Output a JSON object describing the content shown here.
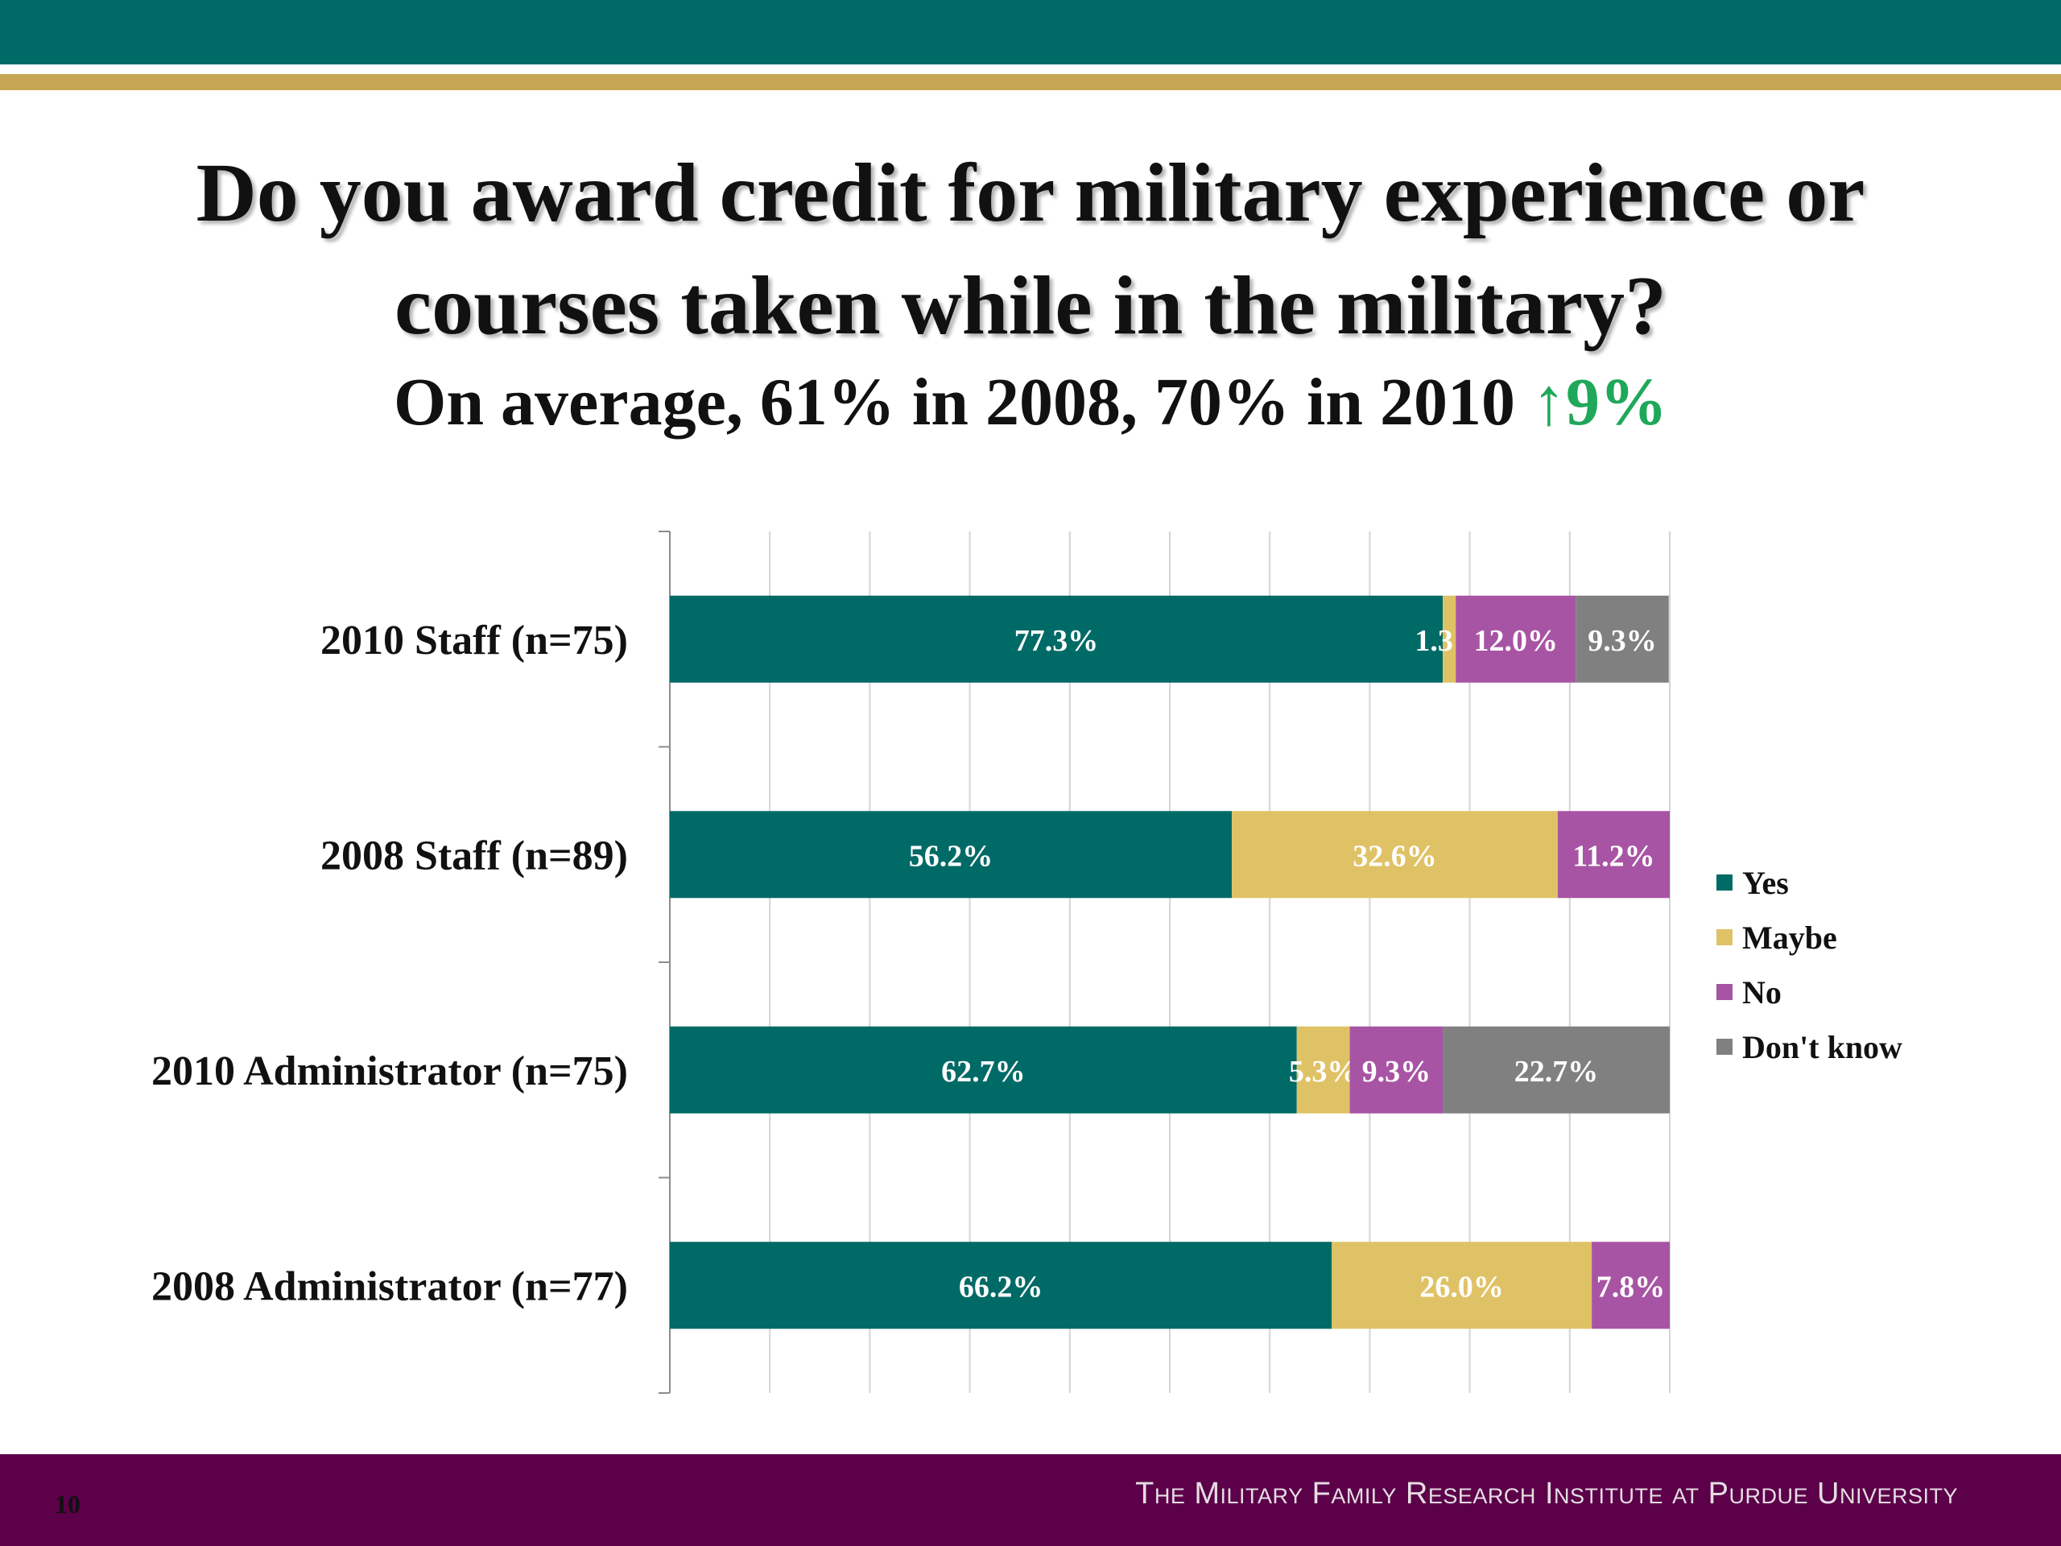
{
  "header": {
    "title_line1": "Do you award credit for military experience or",
    "title_line2": "courses taken while in the military?",
    "subtitle_text": "On average, 61% in 2008, 70% in 2010 ",
    "subtitle_up": "↑9%"
  },
  "footer": {
    "page_number": "10",
    "institute": "The Military Family Research Institute at Purdue University"
  },
  "colors": {
    "teal": "#006a66",
    "gold": "#e0c266",
    "purple": "#a854a4",
    "gray": "#808080",
    "top_band": "#006a66",
    "top_gold": "#c8a754",
    "bottom_band": "#5b0049",
    "up_green": "#1fa85a"
  },
  "chart_data": {
    "type": "bar",
    "orientation": "horizontal",
    "stacked": "100%",
    "categories": [
      "2010 Staff (n=75)",
      "2008 Staff (n=89)",
      "2010 Administrator (n=75)",
      "2008 Administrator (n=77)"
    ],
    "series": [
      {
        "name": "Yes",
        "color": "#006a66",
        "values": [
          77.3,
          56.2,
          62.7,
          66.2
        ],
        "labels": [
          "77.3%",
          "56.2%",
          "62.7%",
          "66.2%"
        ]
      },
      {
        "name": "Maybe",
        "color": "#e0c266",
        "values": [
          1.3,
          32.6,
          5.3,
          26.0
        ],
        "labels": [
          "1.3%",
          "32.6%",
          "5.3%",
          "26.0%"
        ]
      },
      {
        "name": "No",
        "color": "#a854a4",
        "values": [
          12.0,
          11.2,
          9.3,
          7.8
        ],
        "labels": [
          "12.0%",
          "11.2%",
          "9.3%",
          "7.8%"
        ]
      },
      {
        "name": "Don't know",
        "color": "#808080",
        "values": [
          9.3,
          0,
          22.7,
          0
        ],
        "labels": [
          "9.3%",
          "",
          "22.7%",
          ""
        ]
      }
    ],
    "xlim": [
      0,
      100
    ],
    "gridlines": true,
    "legend_position": "right"
  }
}
